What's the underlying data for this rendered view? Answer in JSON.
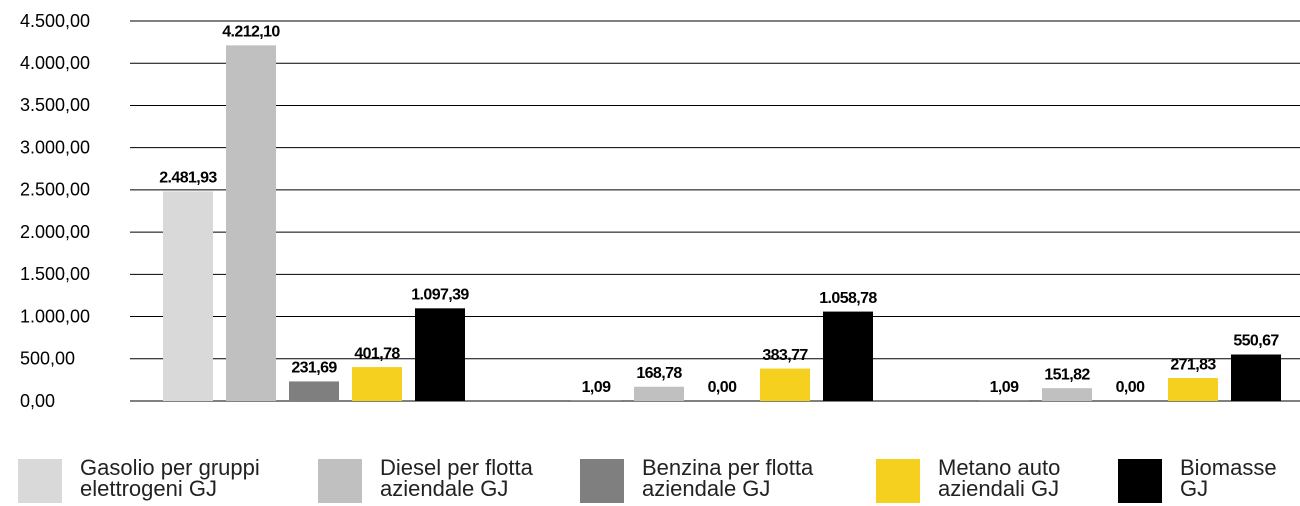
{
  "chart_data": {
    "type": "bar",
    "categories": [
      null,
      null,
      null
    ],
    "series": [
      {
        "name": "Gasolio per gruppi elettrogeni GJ",
        "color": "#d9d9d9",
        "values": [
          2481.93,
          1.09,
          1.09
        ],
        "value_labels": [
          "2.481,93",
          "1,09",
          "1,09"
        ]
      },
      {
        "name": "Diesel per flotta aziendale GJ",
        "color": "#c0c0c0",
        "values": [
          4212.1,
          168.78,
          151.82
        ],
        "value_labels": [
          "4.212,10",
          "168,78",
          "151,82"
        ]
      },
      {
        "name": "Benzina per flotta aziendale GJ",
        "color": "#7f7f7f",
        "values": [
          231.69,
          0.0,
          0.0
        ],
        "value_labels": [
          "231,69",
          "0,00",
          "0,00"
        ]
      },
      {
        "name": "Metano auto aziendali GJ",
        "color": "#f5d01e",
        "values": [
          401.78,
          383.77,
          271.83
        ],
        "value_labels": [
          "401,78",
          "383,77",
          "271,83"
        ]
      },
      {
        "name": "Biomasse GJ",
        "color": "#000000",
        "values": [
          1097.39,
          1058.78,
          550.67
        ],
        "value_labels": [
          "1.097,39",
          "1.058,78",
          "550,67"
        ]
      }
    ],
    "ylim": [
      0,
      4500
    ],
    "yticks": [
      {
        "value": 0,
        "label": "0,00"
      },
      {
        "value": 500,
        "label": "500,00"
      },
      {
        "value": 1000,
        "label": "1.000,00"
      },
      {
        "value": 1500,
        "label": "1.500,00"
      },
      {
        "value": 2000,
        "label": "2.000,00"
      },
      {
        "value": 2500,
        "label": "2.500,00"
      },
      {
        "value": 3000,
        "label": "3.000,00"
      },
      {
        "value": 3500,
        "label": "3.500,00"
      },
      {
        "value": 4000,
        "label": "4.000,00"
      },
      {
        "value": 4500,
        "label": "4.500,00"
      }
    ],
    "grid": true,
    "legend": "bottom"
  }
}
